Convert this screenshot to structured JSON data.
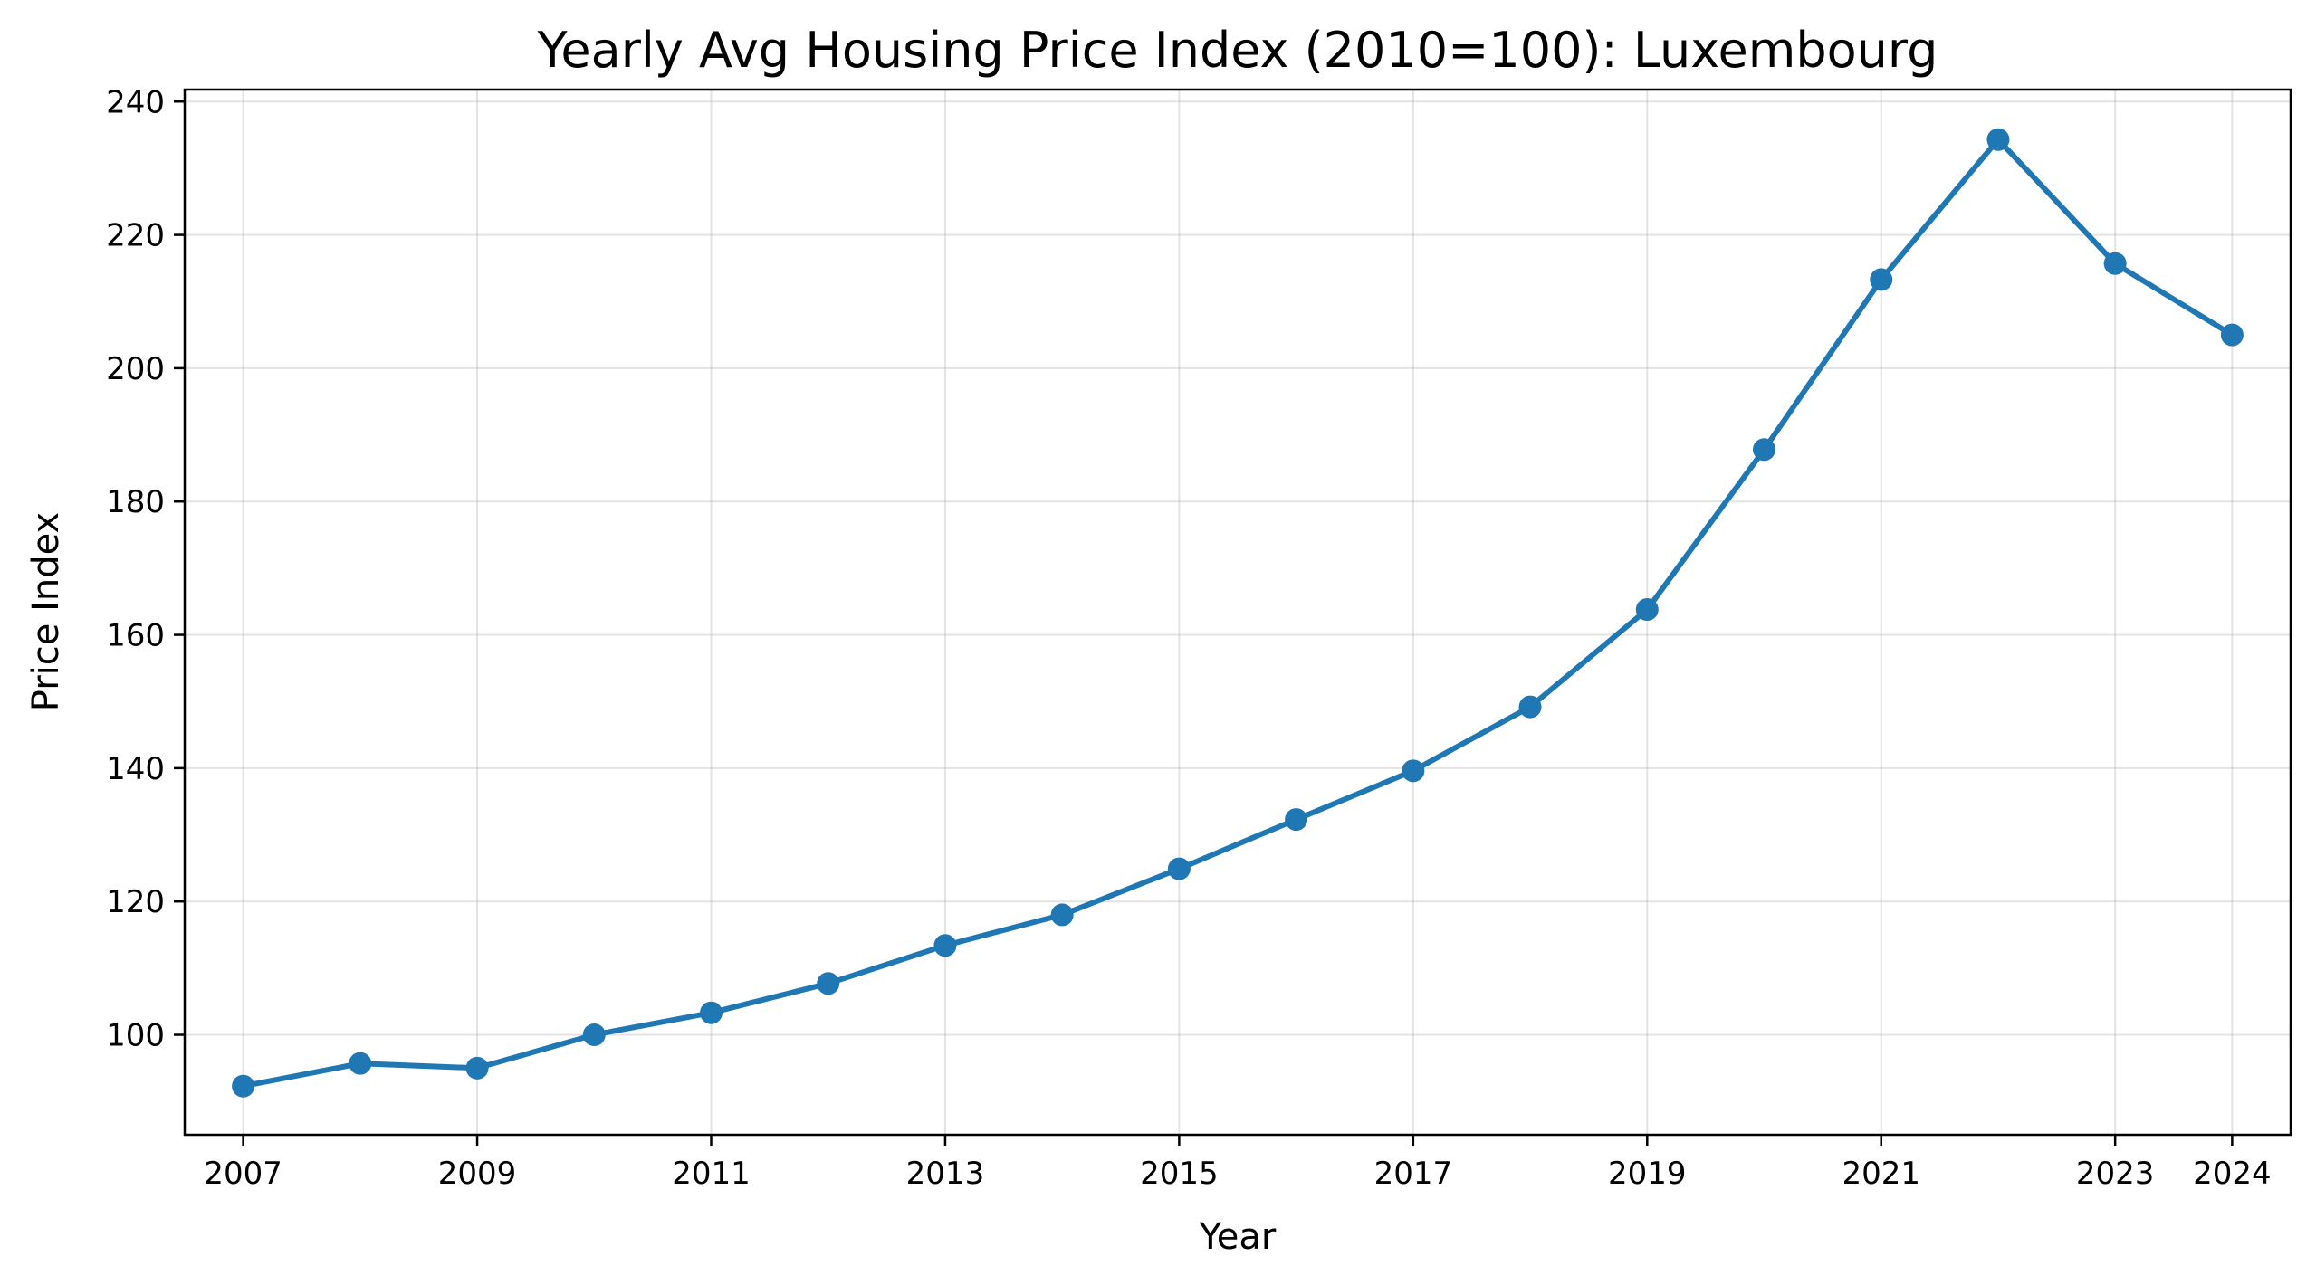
{
  "chart_data": {
    "type": "line",
    "title": "Yearly Avg Housing Price Index (2010=100): Luxembourg",
    "xlabel": "Year",
    "ylabel": "Price Index",
    "x": [
      2007,
      2008,
      2009,
      2010,
      2011,
      2012,
      2013,
      2014,
      2015,
      2016,
      2017,
      2018,
      2019,
      2020,
      2021,
      2022,
      2023,
      2024
    ],
    "series": [
      {
        "values": [
          92.3,
          95.7,
          95.0,
          100.0,
          103.3,
          107.7,
          113.4,
          118.0,
          124.9,
          132.3,
          139.6,
          149.2,
          163.8,
          187.8,
          213.3,
          234.3,
          215.7,
          205.0
        ]
      }
    ],
    "xticks": [
      2007,
      2009,
      2011,
      2013,
      2015,
      2017,
      2019,
      2021,
      2023,
      2024
    ],
    "yticks": [
      100,
      120,
      140,
      160,
      180,
      200,
      220,
      240
    ],
    "xlim": [
      2006.5,
      2024.5
    ],
    "ylim": [
      85.0,
      241.8
    ],
    "grid": true,
    "line_color": "#1f77b4",
    "marker": "circle"
  }
}
